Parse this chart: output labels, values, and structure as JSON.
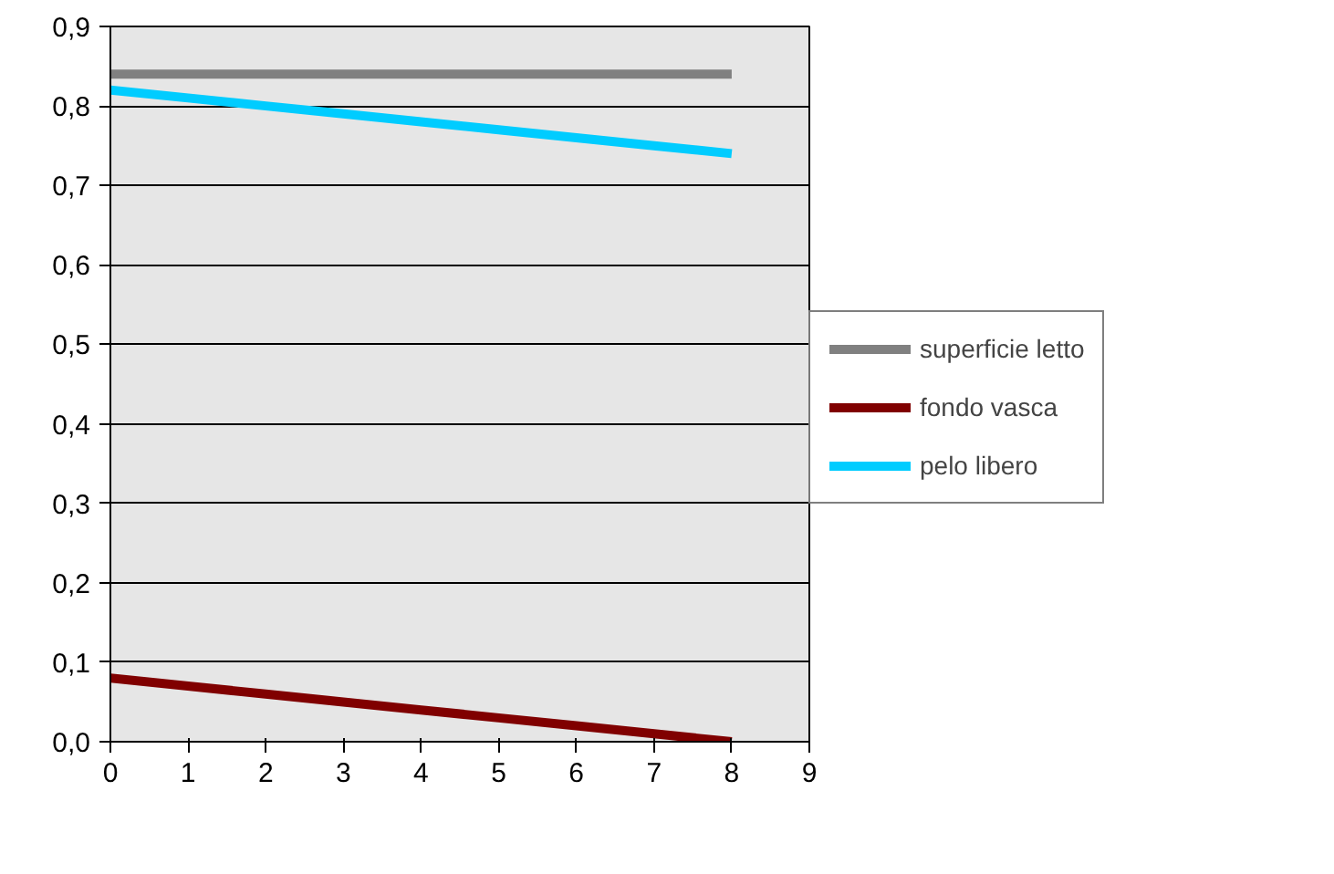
{
  "chart_data": {
    "type": "line",
    "x": [
      0,
      1,
      2,
      3,
      4,
      5,
      6,
      7,
      8
    ],
    "series": [
      {
        "name": "superficie letto",
        "color": "#808080",
        "values": [
          0.84,
          0.84,
          0.84,
          0.84,
          0.84,
          0.84,
          0.84,
          0.84,
          0.84
        ]
      },
      {
        "name": "fondo vasca",
        "color": "#800000",
        "values": [
          0.08,
          0.07,
          0.06,
          0.05,
          0.04,
          0.03,
          0.02,
          0.01,
          0.0
        ]
      },
      {
        "name": "pelo libero",
        "color": "#00ccff",
        "values": [
          0.82,
          0.81,
          0.8,
          0.79,
          0.78,
          0.77,
          0.76,
          0.75,
          0.74
        ]
      }
    ],
    "xlim": [
      0,
      9
    ],
    "xticks": [
      0,
      1,
      2,
      3,
      4,
      5,
      6,
      7,
      8,
      9
    ],
    "ylim": [
      0,
      0.9
    ],
    "yticks": [
      {
        "value": 0,
        "label": "0,0"
      },
      {
        "value": 0.1,
        "label": "0,1"
      },
      {
        "value": 0.2,
        "label": "0,2"
      },
      {
        "value": 0.3,
        "label": "0,3"
      },
      {
        "value": 0.4,
        "label": "0,4"
      },
      {
        "value": 0.5,
        "label": "0,5"
      },
      {
        "value": 0.6,
        "label": "0,6"
      },
      {
        "value": 0.7,
        "label": "0,7"
      },
      {
        "value": 0.8,
        "label": "0,8"
      },
      {
        "value": 0.9,
        "label": "0,9"
      }
    ],
    "grid": "y",
    "legend": "right",
    "marker": "none",
    "line_style": "solid"
  }
}
